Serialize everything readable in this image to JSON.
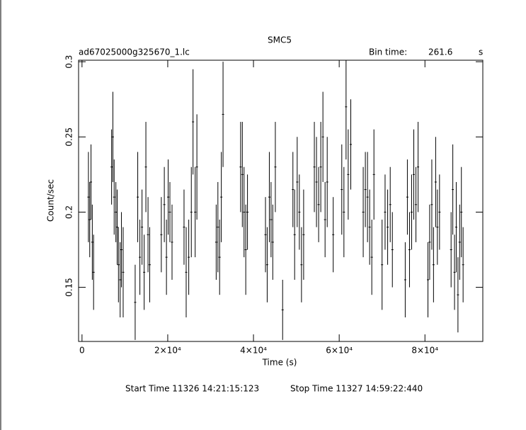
{
  "chart_data": {
    "type": "errorbar",
    "title": "SMC5",
    "subtitle": "ad67025000g325670_1.lc",
    "bin_time_label": "Bin time:",
    "bin_time": 261.6,
    "bin_time_unit": "s",
    "x_label": "Time (s)",
    "y_label": "Count/sec",
    "start_time": "Start Time 11326  14:21:15:123",
    "stop_time": "Stop Time 11327  14:59:22:440",
    "xlim": [
      -800,
      93500
    ],
    "ylim": [
      0.114,
      0.301
    ],
    "xticks": [
      0,
      {
        "value": 20000,
        "label": "2×10⁴"
      },
      {
        "value": 40000,
        "label": "4×10⁴"
      },
      {
        "value": 60000,
        "label": "6×10⁴"
      },
      {
        "value": 80000,
        "label": "8×10⁴"
      }
    ],
    "yticks": [
      0.15,
      0.2,
      0.25,
      0.3
    ],
    "color": "#000000",
    "x": [
      1500,
      1800,
      2100,
      2400,
      2700,
      6900,
      7200,
      7500,
      7900,
      8200,
      8500,
      8900,
      9200,
      9600,
      12400,
      13000,
      13500,
      14000,
      14500,
      14900,
      15400,
      15800,
      18500,
      19200,
      19700,
      20100,
      20500,
      21000,
      23800,
      24300,
      24900,
      25500,
      25900,
      26400,
      26800,
      31300,
      31700,
      32100,
      32500,
      32900,
      37000,
      37400,
      37800,
      38200,
      38600,
      42800,
      43200,
      43700,
      44100,
      44500,
      45100,
      46800,
      49200,
      49600,
      50200,
      50700,
      51200,
      51700,
      54200,
      54700,
      55200,
      55700,
      56200,
      56700,
      57200,
      58600,
      60600,
      61100,
      61600,
      62100,
      62700,
      65600,
      66100,
      66600,
      67100,
      67600,
      68100,
      70000,
      70700,
      71300,
      71900,
      72400,
      75400,
      75900,
      76400,
      76900,
      77400,
      77900,
      78400,
      80700,
      81100,
      81600,
      82000,
      82500,
      82900,
      83400,
      86100,
      86500,
      86900,
      87300,
      87700,
      88100,
      88500,
      88900
    ],
    "values": [
      0.21,
      0.195,
      0.22,
      0.18,
      0.16,
      0.23,
      0.25,
      0.21,
      0.2,
      0.19,
      0.165,
      0.155,
      0.175,
      0.16,
      0.14,
      0.21,
      0.17,
      0.19,
      0.16,
      0.23,
      0.185,
      0.165,
      0.185,
      0.205,
      0.17,
      0.21,
      0.2,
      0.18,
      0.19,
      0.16,
      0.17,
      0.2,
      0.26,
      0.2,
      0.23,
      0.18,
      0.19,
      0.17,
      0.21,
      0.265,
      0.23,
      0.225,
      0.2,
      0.175,
      0.2,
      0.185,
      0.165,
      0.21,
      0.195,
      0.18,
      0.23,
      0.135,
      0.215,
      0.185,
      0.22,
      0.2,
      0.165,
      0.185,
      0.23,
      0.22,
      0.205,
      0.23,
      0.25,
      0.195,
      0.22,
      0.185,
      0.215,
      0.2,
      0.27,
      0.225,
      0.245,
      0.2,
      0.215,
      0.21,
      0.19,
      0.17,
      0.225,
      0.165,
      0.2,
      0.19,
      0.205,
      0.175,
      0.155,
      0.21,
      0.175,
      0.2,
      0.225,
      0.205,
      0.23,
      0.155,
      0.18,
      0.205,
      0.165,
      0.22,
      0.19,
      0.2,
      0.175,
      0.215,
      0.16,
      0.19,
      0.145,
      0.18,
      0.2,
      0.165
    ],
    "errors": [
      0.03,
      0.025,
      0.025,
      0.025,
      0.025,
      0.025,
      0.03,
      0.025,
      0.02,
      0.025,
      0.025,
      0.025,
      0.025,
      0.03,
      0.025,
      0.03,
      0.025,
      0.025,
      0.025,
      0.03,
      0.025,
      0.025,
      0.025,
      0.025,
      0.025,
      0.025,
      0.02,
      0.025,
      0.025,
      0.03,
      0.025,
      0.03,
      0.035,
      0.03,
      0.035,
      0.025,
      0.03,
      0.025,
      0.03,
      0.035,
      0.03,
      0.035,
      0.03,
      0.03,
      0.025,
      0.025,
      0.025,
      0.03,
      0.025,
      0.025,
      0.03,
      0.02,
      0.025,
      0.03,
      0.03,
      0.025,
      0.025,
      0.03,
      0.03,
      0.03,
      0.025,
      0.03,
      0.03,
      0.025,
      0.03,
      0.025,
      0.03,
      0.03,
      0.035,
      0.03,
      0.03,
      0.03,
      0.025,
      0.03,
      0.025,
      0.025,
      0.03,
      0.03,
      0.025,
      0.025,
      0.025,
      0.025,
      0.025,
      0.025,
      0.025,
      0.025,
      0.03,
      0.025,
      0.03,
      0.025,
      0.025,
      0.03,
      0.025,
      0.03,
      0.025,
      0.025,
      0.025,
      0.03,
      0.025,
      0.03,
      0.025,
      0.025,
      0.03,
      0.025
    ]
  }
}
